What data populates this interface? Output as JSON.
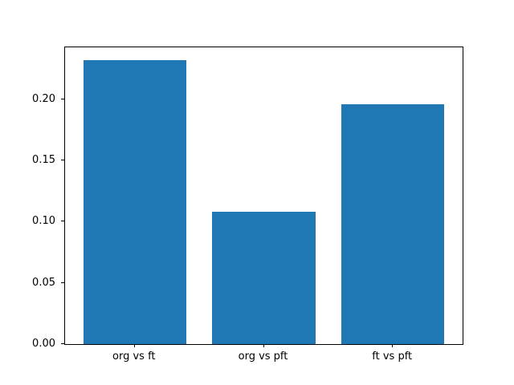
{
  "figure": {
    "background": "#ffffff"
  },
  "chart_data": {
    "type": "bar",
    "title": "",
    "xlabel": "",
    "ylabel": "",
    "categories": [
      "org vs ft",
      "org vs pft",
      "ft vs pft"
    ],
    "values": [
      0.232,
      0.108,
      0.196
    ],
    "bar_color": "#1f77b4",
    "bar_width": 0.8,
    "xlim": [
      -0.54,
      2.54
    ],
    "ylim": [
      0,
      0.2426
    ],
    "yticks": [
      0.0,
      0.05,
      0.1,
      0.15,
      0.2
    ],
    "ytick_labels": [
      "0.00",
      "0.05",
      "0.10",
      "0.15",
      "0.20"
    ],
    "grid": false,
    "legend": false
  }
}
